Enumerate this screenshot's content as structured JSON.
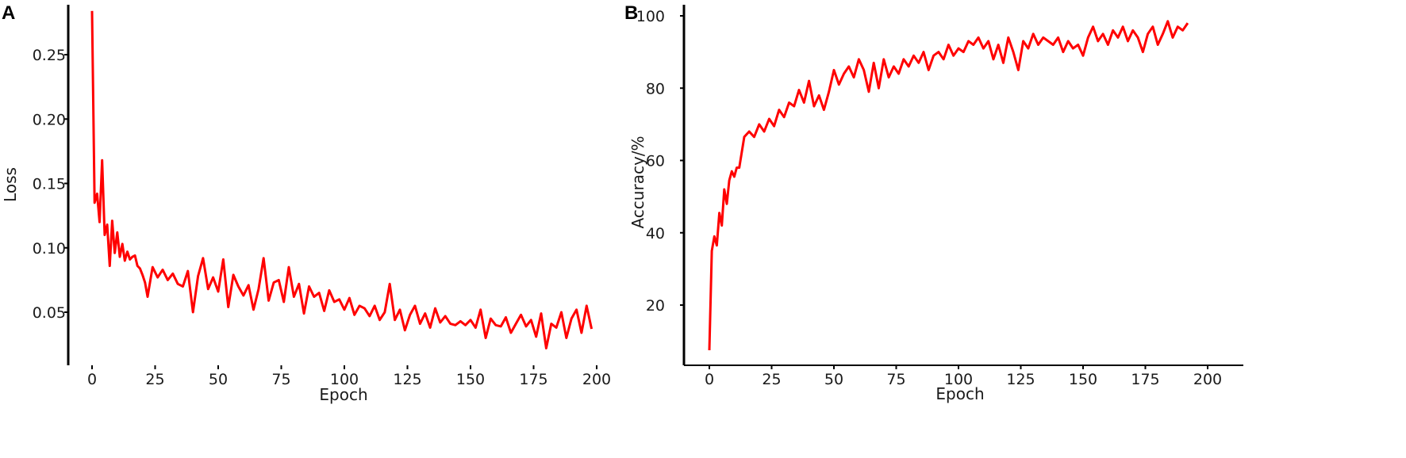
{
  "colors": {
    "line": "#ff0000",
    "axis": "#000000",
    "text": "#1a1a1a"
  },
  "chart_data": [
    {
      "panel": "A",
      "type": "line",
      "xlabel": "Epoch",
      "ylabel": "Loss",
      "xlim": [
        0,
        200
      ],
      "ylim": [
        0.02,
        0.29
      ],
      "xticks": [
        "0",
        "25",
        "50",
        "75",
        "100",
        "125",
        "150",
        "175",
        "200"
      ],
      "yticks": [
        "0.05",
        "0.10",
        "0.15",
        "0.20",
        "0.25"
      ],
      "grid": false,
      "series": [
        {
          "x": [
            0,
            1,
            2,
            3,
            4,
            5,
            6,
            7,
            8,
            9,
            10,
            11,
            12,
            13,
            14,
            15,
            16,
            17,
            18,
            19,
            20,
            21,
            22,
            24,
            26,
            28,
            30,
            32,
            34,
            36,
            38,
            40,
            42,
            44,
            46,
            48,
            50,
            52,
            54,
            56,
            58,
            60,
            62,
            64,
            66,
            68,
            70,
            72,
            74,
            76,
            78,
            80,
            82,
            84,
            86,
            88,
            90,
            92,
            94,
            96,
            98,
            100,
            102,
            104,
            106,
            108,
            110,
            112,
            114,
            116,
            118,
            120,
            122,
            124,
            126,
            128,
            130,
            132,
            134,
            136,
            138,
            140,
            142,
            144,
            146,
            148,
            150,
            152,
            154,
            156,
            158,
            160,
            162,
            164,
            166,
            168,
            170,
            172,
            174,
            176,
            178,
            180,
            182,
            184,
            186,
            188,
            190,
            192,
            194,
            196,
            198
          ],
          "y": [
            0.284,
            0.135,
            0.142,
            0.12,
            0.168,
            0.11,
            0.118,
            0.086,
            0.121,
            0.096,
            0.112,
            0.093,
            0.103,
            0.09,
            0.097,
            0.091,
            0.093,
            0.094,
            0.086,
            0.084,
            0.079,
            0.073,
            0.062,
            0.085,
            0.077,
            0.083,
            0.075,
            0.08,
            0.072,
            0.07,
            0.082,
            0.05,
            0.078,
            0.092,
            0.068,
            0.077,
            0.066,
            0.091,
            0.054,
            0.079,
            0.07,
            0.063,
            0.071,
            0.052,
            0.068,
            0.092,
            0.059,
            0.073,
            0.075,
            0.058,
            0.085,
            0.062,
            0.072,
            0.049,
            0.07,
            0.062,
            0.065,
            0.051,
            0.067,
            0.058,
            0.06,
            0.052,
            0.061,
            0.048,
            0.055,
            0.053,
            0.047,
            0.055,
            0.044,
            0.05,
            0.072,
            0.044,
            0.052,
            0.036,
            0.048,
            0.055,
            0.041,
            0.049,
            0.038,
            0.053,
            0.042,
            0.047,
            0.041,
            0.04,
            0.043,
            0.04,
            0.044,
            0.038,
            0.052,
            0.03,
            0.045,
            0.04,
            0.039,
            0.046,
            0.034,
            0.041,
            0.048,
            0.039,
            0.044,
            0.031,
            0.049,
            0.022,
            0.041,
            0.038,
            0.05,
            0.03,
            0.045,
            0.052,
            0.034,
            0.055,
            0.037
          ]
        }
      ]
    },
    {
      "panel": "B",
      "type": "line",
      "xlabel": "Epoch",
      "ylabel": "Accuracy/%",
      "xlim": [
        0,
        200
      ],
      "ylim": [
        5,
        101
      ],
      "xticks": [
        "0",
        "25",
        "50",
        "75",
        "100",
        "125",
        "150",
        "175",
        "200"
      ],
      "yticks": [
        "20",
        "40",
        "60",
        "80",
        "100"
      ],
      "grid": false,
      "series": [
        {
          "x": [
            0,
            1,
            2,
            3,
            4,
            5,
            6,
            7,
            8,
            9,
            10,
            11,
            12,
            14,
            16,
            18,
            20,
            22,
            24,
            26,
            28,
            30,
            32,
            34,
            36,
            38,
            40,
            42,
            44,
            46,
            48,
            50,
            52,
            54,
            56,
            58,
            60,
            62,
            64,
            66,
            68,
            70,
            72,
            74,
            76,
            78,
            80,
            82,
            84,
            86,
            88,
            90,
            92,
            94,
            96,
            98,
            100,
            102,
            104,
            106,
            108,
            110,
            112,
            114,
            116,
            118,
            120,
            122,
            124,
            126,
            128,
            130,
            132,
            134,
            136,
            138,
            140,
            142,
            144,
            146,
            148,
            150,
            152,
            154,
            156,
            158,
            160,
            162,
            164,
            166,
            168,
            170,
            172,
            174,
            176,
            178,
            180,
            182,
            184,
            186,
            188,
            190,
            192
          ],
          "y": [
            7.5,
            35.0,
            39.0,
            36.5,
            45.5,
            42.0,
            52.0,
            48.0,
            54.5,
            57.0,
            55.5,
            58.0,
            58.0,
            66.5,
            68.0,
            66.5,
            70.0,
            68.0,
            71.5,
            69.5,
            74.0,
            72.0,
            76.0,
            75.0,
            79.5,
            76.0,
            82.0,
            75.0,
            78.0,
            74.0,
            79.0,
            85.0,
            81.0,
            84.0,
            86.0,
            83.0,
            88.0,
            85.0,
            79.0,
            87.0,
            80.0,
            88.0,
            83.0,
            86.0,
            84.0,
            88.0,
            86.0,
            89.0,
            87.0,
            90.0,
            85.0,
            89.0,
            90.0,
            88.0,
            92.0,
            89.0,
            91.0,
            90.0,
            93.0,
            92.0,
            94.0,
            91.0,
            93.0,
            88.0,
            92.0,
            87.0,
            94.0,
            90.0,
            85.0,
            93.0,
            91.0,
            95.0,
            92.0,
            94.0,
            93.0,
            92.0,
            94.0,
            90.0,
            93.0,
            91.0,
            92.0,
            89.0,
            94.0,
            97.0,
            93.0,
            95.0,
            92.0,
            96.0,
            94.0,
            97.0,
            93.0,
            96.0,
            94.0,
            90.0,
            95.0,
            97.0,
            92.0,
            95.0,
            98.5,
            94.0,
            97.0,
            96.0,
            98.0
          ]
        }
      ]
    }
  ]
}
